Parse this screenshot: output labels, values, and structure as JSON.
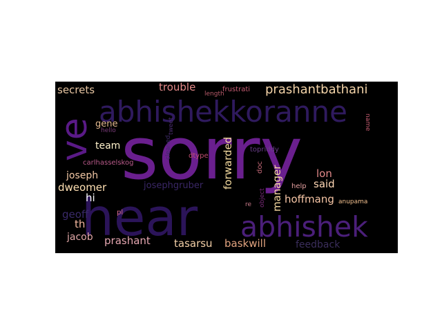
{
  "wordcloud": {
    "words": [
      {
        "text": "sorry",
        "color": "#6a1f8e"
      },
      {
        "text": "hear",
        "color": "#2b1459"
      },
      {
        "text": "abhishekkoranne",
        "color": "#2f1a5e"
      },
      {
        "text": "abhishek",
        "color": "#4b1f7a"
      },
      {
        "text": "ve",
        "color": "#5a1a87"
      },
      {
        "text": "prashantbathani",
        "color": "#f3d3a8"
      },
      {
        "text": "secrets",
        "color": "#e8c6a2"
      },
      {
        "text": "trouble",
        "color": "#e58a8a"
      },
      {
        "text": "length",
        "color": "#b85a6a"
      },
      {
        "text": "frustrati",
        "color": "#c85d74"
      },
      {
        "text": "gene",
        "color": "#e3b98f"
      },
      {
        "text": "hello",
        "color": "#7a3b7a"
      },
      {
        "text": "team",
        "color": "#fff2cc"
      },
      {
        "text": "forwarded",
        "color": "#f6dca0"
      },
      {
        "text": "cleaned",
        "color": "#3f2c6a"
      },
      {
        "text": "tweet",
        "color": "#4a2c70"
      },
      {
        "text": "topriddy",
        "color": "#6a3d8a"
      },
      {
        "text": "name",
        "color": "#c25b6f"
      },
      {
        "text": "dtype",
        "color": "#c04f72"
      },
      {
        "text": "carlhasselskog",
        "color": "#b95a8a"
      },
      {
        "text": "doc",
        "color": "#c86a7a"
      },
      {
        "text": "joseph",
        "color": "#f4c9a6"
      },
      {
        "text": "lon",
        "color": "#e38a8a"
      },
      {
        "text": "manager",
        "color": "#f5d9a0"
      },
      {
        "text": "said",
        "color": "#ffd7b5"
      },
      {
        "text": "josephgruber",
        "color": "#3a2766"
      },
      {
        "text": "dweomer",
        "color": "#ffe0b3"
      },
      {
        "text": "object",
        "color": "#7a2a7a"
      },
      {
        "text": "help",
        "color": "#e5a0a0"
      },
      {
        "text": "hi",
        "color": "#ffffff"
      },
      {
        "text": "hoffmang",
        "color": "#f7c6a6"
      },
      {
        "text": "anupama",
        "color": "#f2c08f"
      },
      {
        "text": "re",
        "color": "#c97a8a"
      },
      {
        "text": "geoff",
        "color": "#3a2a6a"
      },
      {
        "text": "pl",
        "color": "#d86b8a"
      },
      {
        "text": "th",
        "color": "#f4b8a0"
      },
      {
        "text": "jacob",
        "color": "#e2a8a8"
      },
      {
        "text": "prashant",
        "color": "#e4a6b0"
      },
      {
        "text": "tasarsu",
        "color": "#f3cfa7"
      },
      {
        "text": "baskwill",
        "color": "#e1a37f"
      },
      {
        "text": "feedback",
        "color": "#3b2e5c"
      }
    ]
  }
}
